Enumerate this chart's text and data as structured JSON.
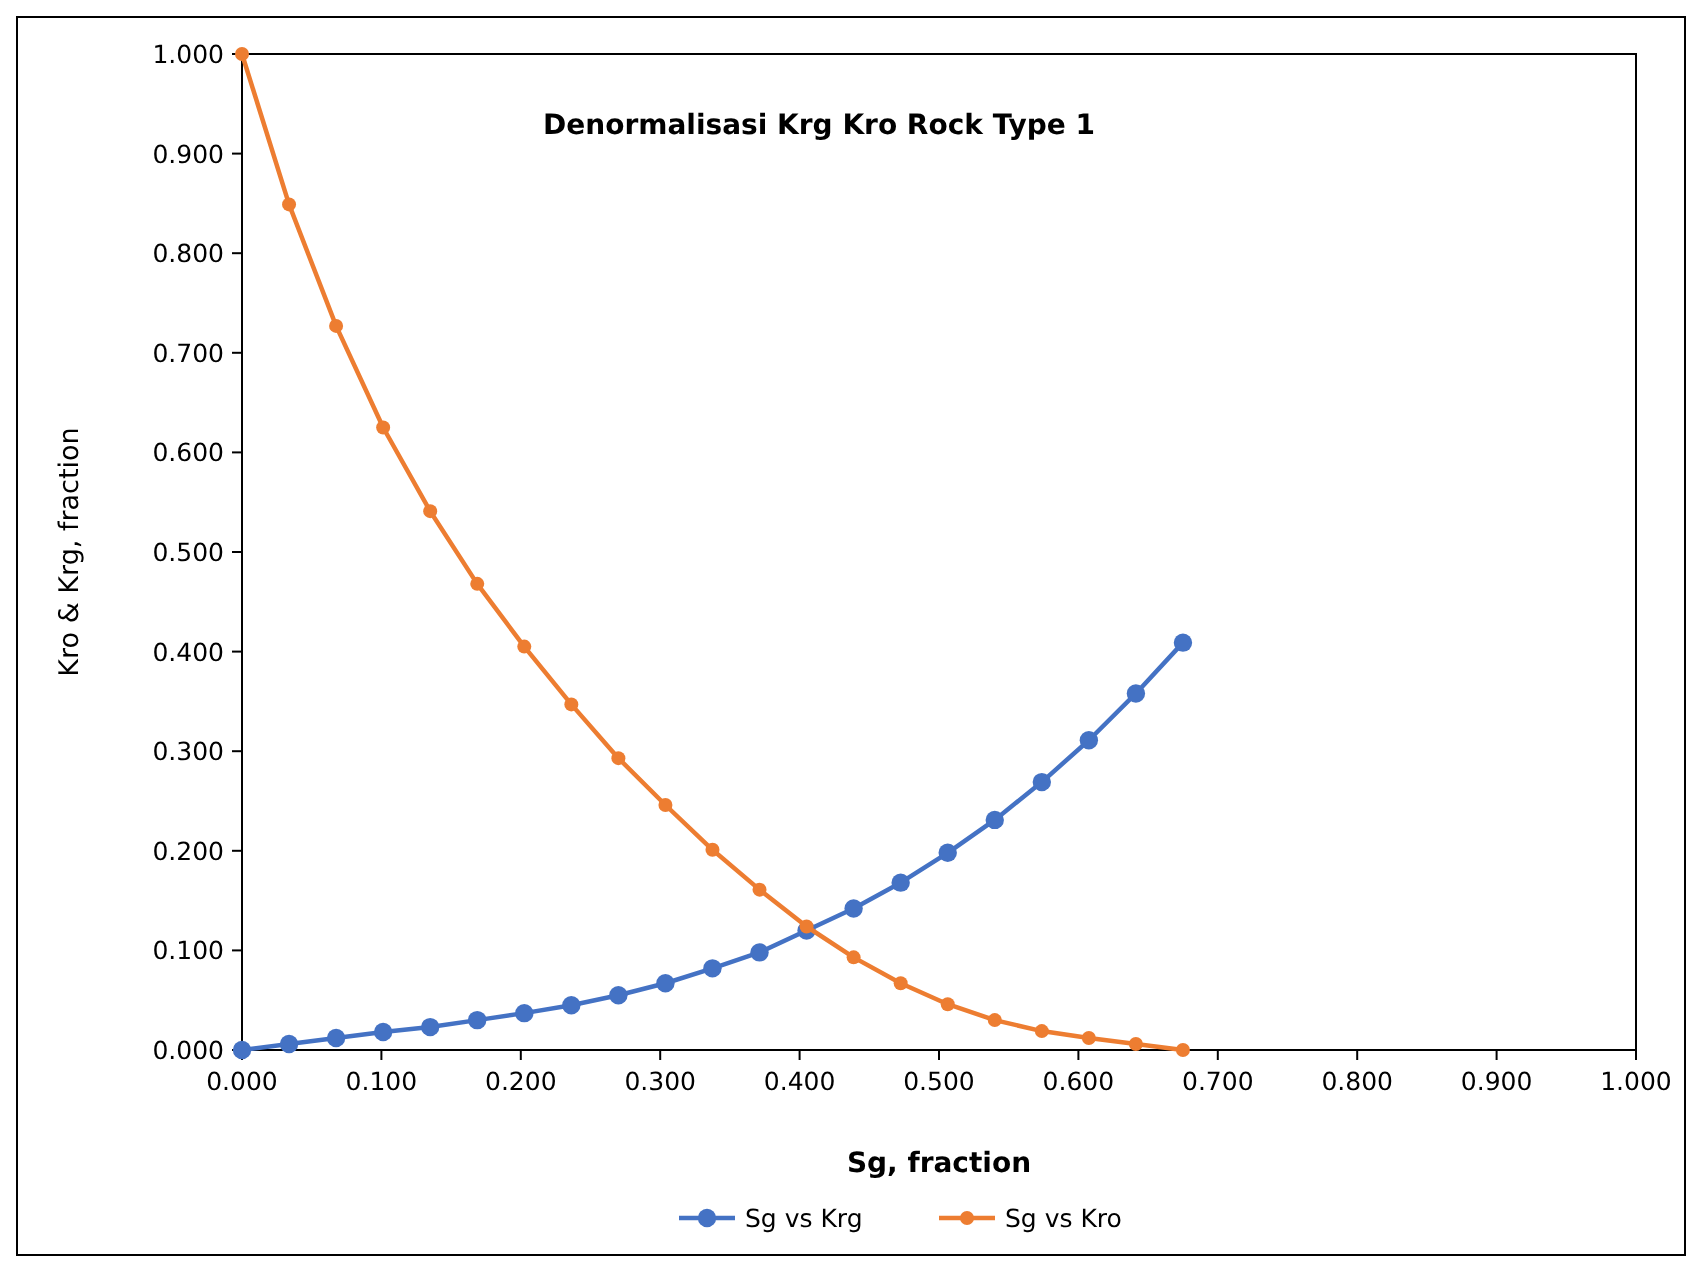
{
  "chart_data": {
    "type": "line",
    "title": "Denormalisasi Krg Kro Rock Type 1",
    "xlabel": "Sg, fraction",
    "ylabel": "Kro & Krg, fraction",
    "x": [
      0,
      0.03375,
      0.0675,
      0.10125,
      0.135,
      0.16875,
      0.2025,
      0.23625,
      0.27,
      0.30375,
      0.3375,
      0.37125,
      0.405,
      0.43875,
      0.4725,
      0.50625,
      0.54,
      0.57375,
      0.6075,
      0.64125,
      0.675
    ],
    "series": [
      {
        "name": "Sg vs Krg",
        "color": "#4472c4",
        "values": [
          0,
          0.006,
          0.012,
          0.018,
          0.023,
          0.03,
          0.037,
          0.045,
          0.055,
          0.067,
          0.082,
          0.098,
          0.12,
          0.142,
          0.168,
          0.198,
          0.231,
          0.269,
          0.311,
          0.358,
          0.409
        ]
      },
      {
        "name": "Sg vs Kro",
        "color": "#ed7d31",
        "values": [
          1.0,
          0.849,
          0.727,
          0.625,
          0.541,
          0.468,
          0.405,
          0.347,
          0.293,
          0.246,
          0.201,
          0.161,
          0.124,
          0.093,
          0.067,
          0.046,
          0.03,
          0.019,
          0.012,
          0.006,
          0
        ]
      }
    ],
    "xlim": [
      0,
      1
    ],
    "ylim": [
      0,
      1
    ],
    "xticks": [
      {
        "value": 0,
        "label": "0.000"
      },
      {
        "value": 0.1,
        "label": "0.100"
      },
      {
        "value": 0.2,
        "label": "0.200"
      },
      {
        "value": 0.3,
        "label": "0.300"
      },
      {
        "value": 0.4,
        "label": "0.400"
      },
      {
        "value": 0.5,
        "label": "0.500"
      },
      {
        "value": 0.6,
        "label": "0.600"
      },
      {
        "value": 0.7,
        "label": "0.700"
      },
      {
        "value": 0.8,
        "label": "0.800"
      },
      {
        "value": 0.9,
        "label": "0.900"
      },
      {
        "value": 1,
        "label": "1.000"
      }
    ],
    "yticks": [
      {
        "value": 0,
        "label": "0.000"
      },
      {
        "value": 0.1,
        "label": "0.100"
      },
      {
        "value": 0.2,
        "label": "0.200"
      },
      {
        "value": 0.3,
        "label": "0.300"
      },
      {
        "value": 0.4,
        "label": "0.400"
      },
      {
        "value": 0.5,
        "label": "0.500"
      },
      {
        "value": 0.6,
        "label": "0.600"
      },
      {
        "value": 0.7,
        "label": "0.700"
      },
      {
        "value": 0.8,
        "label": "0.800"
      },
      {
        "value": 0.9,
        "label": "0.900"
      },
      {
        "value": 1,
        "label": "1.000"
      }
    ],
    "grid": false,
    "legend": "bottom",
    "marker": "circle",
    "line_style": "solid"
  }
}
